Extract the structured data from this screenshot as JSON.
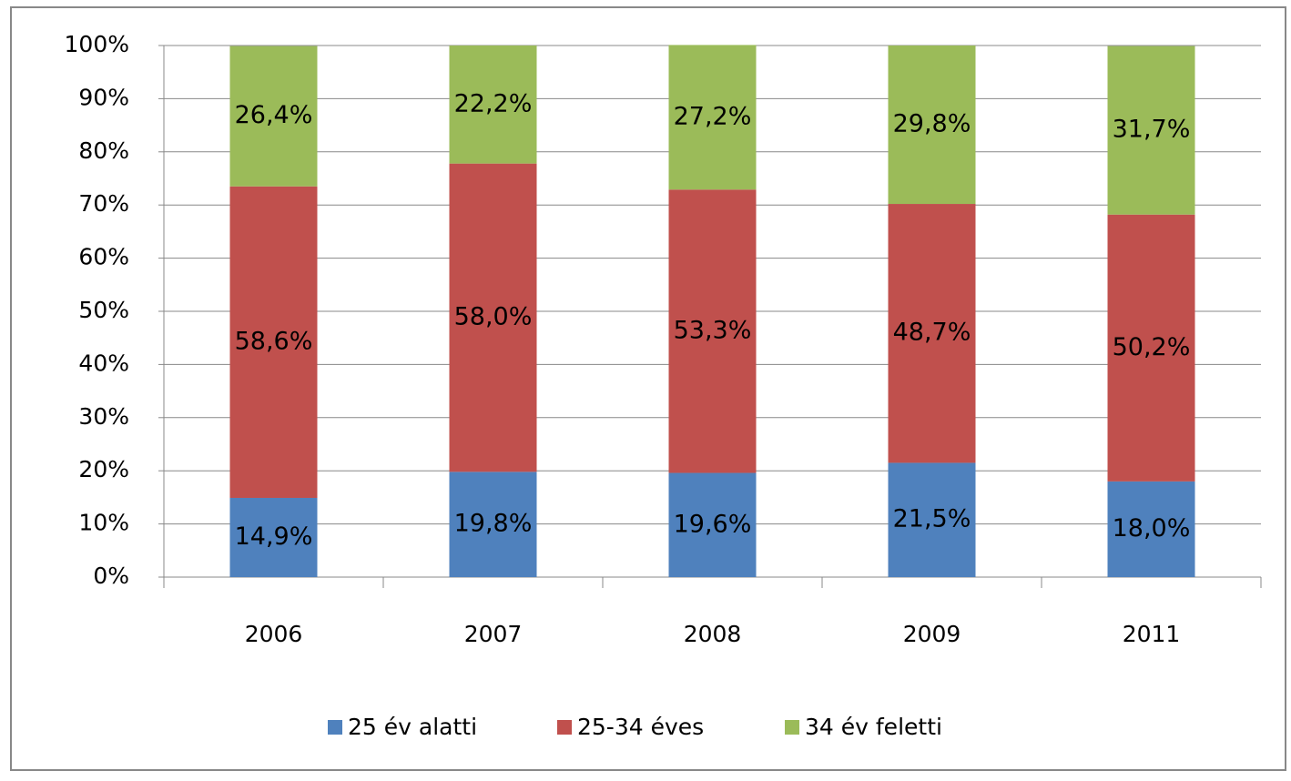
{
  "chart_data": {
    "type": "stacked_bar",
    "categories": [
      "2006",
      "2007",
      "2008",
      "2009",
      "2011"
    ],
    "series": [
      {
        "name": "25 év alatti",
        "color": "#4f81bd",
        "values": [
          14.9,
          19.8,
          19.6,
          21.5,
          18.0
        ],
        "value_labels": [
          "14,9%",
          "19,8%",
          "19,6%",
          "21,5%",
          "18,0%"
        ]
      },
      {
        "name": "25-34 éves",
        "color": "#c0504d",
        "values": [
          58.6,
          58.0,
          53.3,
          48.7,
          50.2
        ],
        "value_labels": [
          "58,6%",
          "58,0%",
          "53,3%",
          "48,7%",
          "50,2%"
        ]
      },
      {
        "name": "34 év feletti",
        "color": "#9bbb59",
        "values": [
          26.4,
          22.2,
          27.2,
          29.8,
          31.7
        ],
        "value_labels": [
          "26,4%",
          "22,2%",
          "27,2%",
          "29,8%",
          "31,7%"
        ]
      }
    ],
    "ylim": [
      0,
      100
    ],
    "yticks": [
      {
        "value": 0,
        "label": "0%"
      },
      {
        "value": 10,
        "label": "10%"
      },
      {
        "value": 20,
        "label": "20%"
      },
      {
        "value": 30,
        "label": "30%"
      },
      {
        "value": 40,
        "label": "40%"
      },
      {
        "value": 50,
        "label": "50%"
      },
      {
        "value": 60,
        "label": "60%"
      },
      {
        "value": 70,
        "label": "70%"
      },
      {
        "value": 80,
        "label": "80%"
      },
      {
        "value": 90,
        "label": "90%"
      },
      {
        "value": 100,
        "label": "100%"
      }
    ],
    "grid": true,
    "legend": "bottom"
  }
}
